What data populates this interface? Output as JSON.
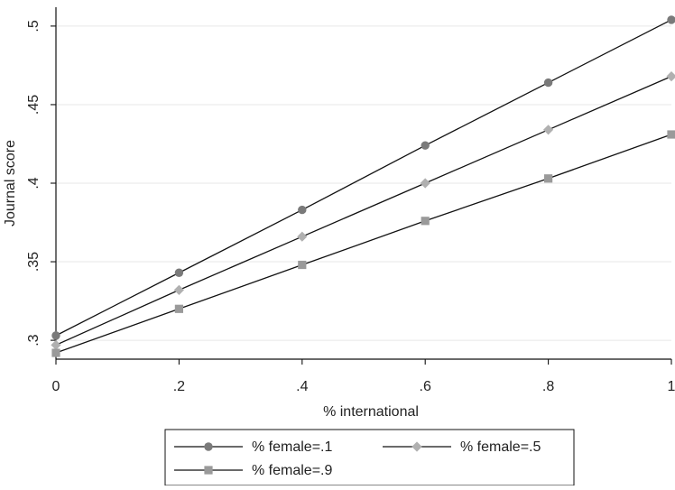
{
  "chart_data": {
    "type": "line",
    "title": "",
    "xlabel": "% international",
    "ylabel": "Journal score",
    "x": [
      0,
      0.2,
      0.4,
      0.6,
      0.8,
      1
    ],
    "x_ticks": [
      "0",
      ".2",
      ".4",
      ".6",
      ".8",
      "1"
    ],
    "xlim": [
      0,
      1
    ],
    "y_ticks": [
      ".3",
      ".35",
      ".4",
      ".45",
      ".5"
    ],
    "y_tick_values": [
      0.3,
      0.35,
      0.4,
      0.45,
      0.5
    ],
    "ylim": [
      0.288,
      0.512
    ],
    "grid": true,
    "legend_position": "bottom",
    "series": [
      {
        "name": "% female=.1",
        "marker": "circle",
        "color": "#7a7a7a",
        "values": [
          0.303,
          0.343,
          0.383,
          0.424,
          0.464,
          0.504
        ]
      },
      {
        "name": "% female=.5",
        "marker": "diamond",
        "color": "#b0b0b0",
        "values": [
          0.297,
          0.332,
          0.366,
          0.4,
          0.434,
          0.468
        ]
      },
      {
        "name": "% female=.9",
        "marker": "square",
        "color": "#9a9a9a",
        "values": [
          0.292,
          0.32,
          0.348,
          0.376,
          0.403,
          0.431
        ]
      }
    ]
  }
}
